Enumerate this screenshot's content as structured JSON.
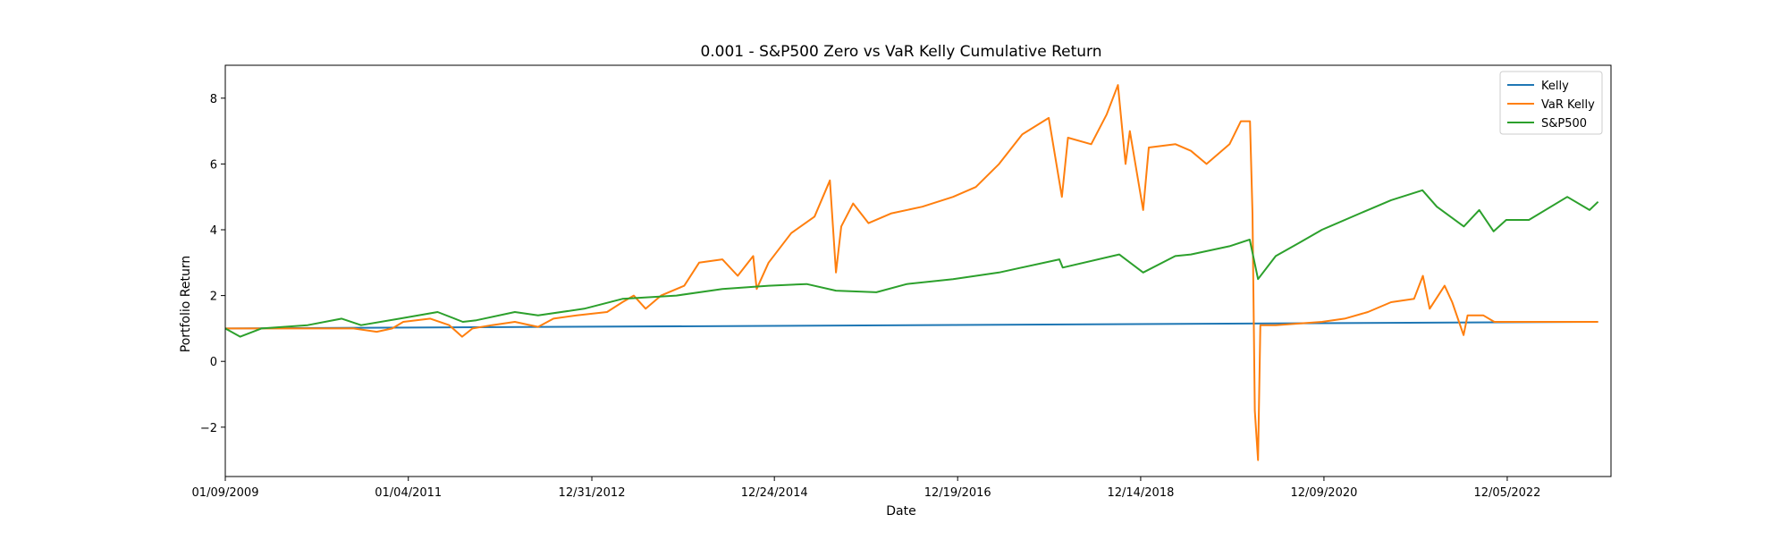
{
  "chart_data": {
    "type": "line",
    "title": "0.001 - S&P500 Zero vs VaR Kelly Cumulative Return",
    "xlabel": "Date",
    "ylabel": "Portfolio Return",
    "xlim": [
      "2009-01-09",
      "2024-01-20"
    ],
    "ylim": [
      -3.5,
      9.0
    ],
    "x_ticks": [
      {
        "date": "2009-01-09",
        "label": "01/09/2009"
      },
      {
        "date": "2011-01-04",
        "label": "01/04/2011"
      },
      {
        "date": "2012-12-31",
        "label": "12/31/2012"
      },
      {
        "date": "2014-12-24",
        "label": "12/24/2014"
      },
      {
        "date": "2016-12-19",
        "label": "12/19/2016"
      },
      {
        "date": "2018-12-14",
        "label": "12/14/2018"
      },
      {
        "date": "2020-12-09",
        "label": "12/09/2020"
      },
      {
        "date": "2022-12-05",
        "label": "12/05/2022"
      }
    ],
    "y_ticks": [
      -2,
      0,
      2,
      4,
      6,
      8
    ],
    "grid": false,
    "legend": "top-right",
    "series": [
      {
        "name": "Kelly",
        "color": "#1f77b4",
        "points": [
          [
            "2009-01-09",
            1.0
          ],
          [
            "2023-11-30",
            1.2
          ]
        ]
      },
      {
        "name": "VaR Kelly",
        "color": "#ff7f0e",
        "points": [
          [
            "2009-01-09",
            1.0
          ],
          [
            "2009-06-01",
            1.0
          ],
          [
            "2010-01-01",
            1.0
          ],
          [
            "2010-06-01",
            1.0
          ],
          [
            "2010-09-01",
            0.9
          ],
          [
            "2010-11-01",
            1.0
          ],
          [
            "2010-12-15",
            1.2
          ],
          [
            "2011-04-01",
            1.3
          ],
          [
            "2011-06-15",
            1.1
          ],
          [
            "2011-08-05",
            0.75
          ],
          [
            "2011-09-15",
            1.0
          ],
          [
            "2011-12-01",
            1.1
          ],
          [
            "2012-03-01",
            1.2
          ],
          [
            "2012-06-01",
            1.05
          ],
          [
            "2012-08-01",
            1.3
          ],
          [
            "2012-11-01",
            1.4
          ],
          [
            "2013-03-01",
            1.5
          ],
          [
            "2013-05-01",
            1.8
          ],
          [
            "2013-06-15",
            2.0
          ],
          [
            "2013-08-01",
            1.6
          ],
          [
            "2013-10-01",
            2.0
          ],
          [
            "2014-01-01",
            2.3
          ],
          [
            "2014-03-01",
            3.0
          ],
          [
            "2014-06-01",
            3.1
          ],
          [
            "2014-08-01",
            2.6
          ],
          [
            "2014-10-01",
            3.2
          ],
          [
            "2014-10-15",
            2.2
          ],
          [
            "2014-12-01",
            3.0
          ],
          [
            "2015-03-01",
            3.9
          ],
          [
            "2015-06-01",
            4.4
          ],
          [
            "2015-08-01",
            5.5
          ],
          [
            "2015-08-25",
            2.7
          ],
          [
            "2015-09-15",
            4.1
          ],
          [
            "2015-11-01",
            4.8
          ],
          [
            "2016-01-01",
            4.2
          ],
          [
            "2016-04-01",
            4.5
          ],
          [
            "2016-08-01",
            4.7
          ],
          [
            "2016-12-01",
            5.0
          ],
          [
            "2017-03-01",
            5.3
          ],
          [
            "2017-06-01",
            6.0
          ],
          [
            "2017-09-01",
            6.9
          ],
          [
            "2017-12-15",
            7.4
          ],
          [
            "2018-02-05",
            5.0
          ],
          [
            "2018-03-01",
            6.8
          ],
          [
            "2018-06-01",
            6.6
          ],
          [
            "2018-08-01",
            7.5
          ],
          [
            "2018-09-15",
            8.4
          ],
          [
            "2018-10-15",
            6.0
          ],
          [
            "2018-11-01",
            7.0
          ],
          [
            "2018-12-24",
            4.6
          ],
          [
            "2019-01-15",
            6.5
          ],
          [
            "2019-05-01",
            6.6
          ],
          [
            "2019-07-01",
            6.4
          ],
          [
            "2019-09-01",
            6.0
          ],
          [
            "2019-12-01",
            6.6
          ],
          [
            "2020-01-15",
            7.3
          ],
          [
            "2020-02-20",
            7.3
          ],
          [
            "2020-03-01",
            4.5
          ],
          [
            "2020-03-10",
            -1.5
          ],
          [
            "2020-03-23",
            -3.0
          ],
          [
            "2020-04-01",
            1.1
          ],
          [
            "2020-06-01",
            1.1
          ],
          [
            "2020-12-01",
            1.2
          ],
          [
            "2021-03-01",
            1.3
          ],
          [
            "2021-06-01",
            1.5
          ],
          [
            "2021-09-01",
            1.8
          ],
          [
            "2021-12-01",
            1.9
          ],
          [
            "2022-01-05",
            2.6
          ],
          [
            "2022-02-01",
            1.6
          ],
          [
            "2022-04-01",
            2.3
          ],
          [
            "2022-05-01",
            1.8
          ],
          [
            "2022-06-15",
            0.8
          ],
          [
            "2022-07-01",
            1.4
          ],
          [
            "2022-09-01",
            1.4
          ],
          [
            "2022-10-15",
            1.2
          ],
          [
            "2023-01-01",
            1.2
          ],
          [
            "2023-06-01",
            1.2
          ],
          [
            "2023-11-30",
            1.2
          ]
        ]
      },
      {
        "name": "S&P500",
        "color": "#2ca02c",
        "points": [
          [
            "2009-01-09",
            1.0
          ],
          [
            "2009-03-09",
            0.75
          ],
          [
            "2009-06-01",
            1.0
          ],
          [
            "2009-12-01",
            1.1
          ],
          [
            "2010-04-15",
            1.3
          ],
          [
            "2010-07-01",
            1.1
          ],
          [
            "2010-12-01",
            1.3
          ],
          [
            "2011-04-30",
            1.5
          ],
          [
            "2011-08-08",
            1.2
          ],
          [
            "2011-10-01",
            1.25
          ],
          [
            "2012-03-01",
            1.5
          ],
          [
            "2012-06-01",
            1.4
          ],
          [
            "2012-12-01",
            1.6
          ],
          [
            "2013-05-01",
            1.9
          ],
          [
            "2013-12-01",
            2.0
          ],
          [
            "2014-06-01",
            2.2
          ],
          [
            "2014-12-01",
            2.3
          ],
          [
            "2015-05-01",
            2.35
          ],
          [
            "2015-08-25",
            2.15
          ],
          [
            "2016-02-01",
            2.1
          ],
          [
            "2016-06-01",
            2.35
          ],
          [
            "2016-12-01",
            2.5
          ],
          [
            "2017-06-01",
            2.7
          ],
          [
            "2018-01-26",
            3.1
          ],
          [
            "2018-02-08",
            2.85
          ],
          [
            "2018-09-20",
            3.25
          ],
          [
            "2018-12-24",
            2.7
          ],
          [
            "2019-04-30",
            3.2
          ],
          [
            "2019-07-01",
            3.25
          ],
          [
            "2019-12-01",
            3.5
          ],
          [
            "2020-02-19",
            3.7
          ],
          [
            "2020-03-23",
            2.5
          ],
          [
            "2020-06-01",
            3.2
          ],
          [
            "2020-09-01",
            3.6
          ],
          [
            "2020-12-01",
            4.0
          ],
          [
            "2021-06-01",
            4.6
          ],
          [
            "2021-09-01",
            4.9
          ],
          [
            "2022-01-03",
            5.2
          ],
          [
            "2022-03-01",
            4.7
          ],
          [
            "2022-06-16",
            4.1
          ],
          [
            "2022-08-16",
            4.6
          ],
          [
            "2022-10-12",
            3.95
          ],
          [
            "2022-12-01",
            4.3
          ],
          [
            "2023-03-01",
            4.3
          ],
          [
            "2023-07-31",
            5.0
          ],
          [
            "2023-10-27",
            4.6
          ],
          [
            "2023-11-30",
            4.85
          ]
        ]
      }
    ]
  }
}
